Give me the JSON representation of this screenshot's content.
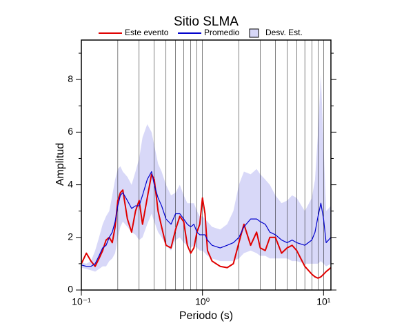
{
  "chart_data": {
    "type": "line",
    "title": "Sitio SLMA",
    "xlabel": "Periodo (s)",
    "ylabel": "Amplitud",
    "xscale": "log",
    "xlim": [
      0.1,
      11.5
    ],
    "ylim": [
      0,
      9.5
    ],
    "xticks": [
      {
        "value": 0.1,
        "label": "10⁻¹"
      },
      {
        "value": 1,
        "label": "10⁰"
      },
      {
        "value": 10,
        "label": "10¹"
      }
    ],
    "xgrid": [
      0.2,
      0.3,
      0.4,
      0.5,
      0.6,
      0.7,
      0.8,
      0.9,
      1,
      2,
      3,
      4,
      5,
      6,
      7,
      8,
      9,
      10
    ],
    "yticks": [
      0,
      2,
      4,
      6,
      8
    ],
    "yminorticks": [
      1,
      3,
      5,
      7,
      9
    ],
    "x": [
      0.1,
      0.11,
      0.12,
      0.13,
      0.14,
      0.15,
      0.16,
      0.17,
      0.18,
      0.19,
      0.2,
      0.21,
      0.22,
      0.24,
      0.26,
      0.28,
      0.3,
      0.32,
      0.35,
      0.38,
      0.4,
      0.43,
      0.46,
      0.5,
      0.55,
      0.6,
      0.65,
      0.7,
      0.75,
      0.8,
      0.85,
      0.9,
      0.95,
      1.0,
      1.05,
      1.1,
      1.2,
      1.4,
      1.6,
      1.8,
      2.0,
      2.2,
      2.5,
      2.8,
      3.0,
      3.3,
      3.6,
      4.0,
      4.5,
      5.0,
      5.5,
      6.0,
      7.0,
      8.0,
      8.5,
      9.0,
      9.5,
      10,
      10.5,
      11.5
    ],
    "band": {
      "name": "Desv. Est.",
      "color": "#d8d8f8",
      "upper": [
        1.05,
        1.0,
        1.1,
        1.5,
        2.0,
        2.5,
        2.8,
        3.0,
        3.6,
        4.2,
        4.6,
        4.7,
        4.5,
        4.3,
        4.0,
        4.5,
        5.0,
        5.8,
        6.3,
        6.0,
        5.5,
        4.8,
        4.5,
        4.0,
        3.6,
        3.7,
        4.0,
        3.6,
        3.3,
        3.3,
        3.3,
        3.0,
        2.8,
        2.8,
        2.7,
        2.6,
        2.4,
        2.3,
        2.5,
        3.0,
        4.0,
        4.5,
        4.4,
        4.6,
        4.4,
        4.2,
        4.0,
        3.6,
        3.3,
        3.4,
        3.6,
        3.5,
        3.0,
        3.5,
        4.2,
        6.0,
        8.2,
        5.5,
        3.0,
        3.2
      ],
      "lower": [
        0.85,
        0.8,
        0.75,
        0.7,
        0.8,
        0.9,
        0.9,
        1.1,
        1.2,
        1.4,
        2.0,
        2.4,
        2.6,
        2.4,
        2.2,
        2.1,
        1.9,
        2.0,
        2.5,
        2.9,
        2.6,
        2.2,
        2.0,
        1.7,
        1.5,
        1.9,
        2.0,
        1.8,
        1.7,
        1.6,
        1.7,
        1.6,
        1.5,
        1.5,
        1.4,
        1.3,
        1.2,
        1.1,
        1.1,
        1.1,
        1.2,
        1.4,
        1.5,
        1.4,
        1.3,
        1.3,
        1.2,
        1.2,
        1.2,
        1.2,
        1.1,
        1.1,
        1.0,
        1.0,
        1.0,
        1.0,
        1.1,
        1.0,
        0.9,
        1.0
      ]
    },
    "series": [
      {
        "name": "Este evento",
        "color": "#e00000",
        "width": 2,
        "values": [
          1.0,
          1.4,
          1.1,
          0.9,
          1.2,
          1.5,
          1.9,
          2.0,
          1.8,
          2.4,
          3.4,
          3.7,
          3.8,
          2.7,
          2.2,
          3.0,
          3.4,
          2.5,
          3.5,
          4.4,
          4.2,
          3.0,
          2.4,
          1.7,
          1.6,
          2.3,
          2.8,
          2.6,
          1.7,
          1.4,
          1.6,
          2.2,
          2.5,
          3.5,
          2.9,
          1.5,
          1.1,
          0.9,
          0.85,
          1.0,
          1.8,
          2.5,
          1.7,
          2.2,
          1.6,
          1.5,
          2.0,
          2.0,
          1.4,
          1.6,
          1.7,
          1.5,
          0.9,
          0.6,
          0.5,
          0.45,
          0.5,
          0.6,
          0.7,
          0.85
        ]
      },
      {
        "name": "Promedio",
        "color": "#0000cc",
        "width": 1.2,
        "values": [
          0.95,
          0.9,
          0.9,
          1.0,
          1.3,
          1.6,
          1.7,
          2.0,
          2.2,
          2.6,
          3.2,
          3.6,
          3.7,
          3.4,
          3.1,
          3.2,
          3.2,
          3.6,
          4.2,
          4.5,
          4.0,
          3.5,
          3.2,
          2.7,
          2.5,
          2.9,
          2.9,
          2.7,
          2.5,
          2.4,
          2.5,
          2.2,
          2.1,
          2.1,
          2.1,
          1.9,
          1.7,
          1.6,
          1.7,
          1.8,
          2.0,
          2.4,
          2.7,
          2.7,
          2.6,
          2.5,
          2.2,
          2.1,
          1.9,
          1.8,
          1.9,
          1.8,
          1.7,
          1.9,
          2.2,
          2.8,
          3.3,
          2.7,
          1.8,
          2.0
        ]
      }
    ]
  }
}
